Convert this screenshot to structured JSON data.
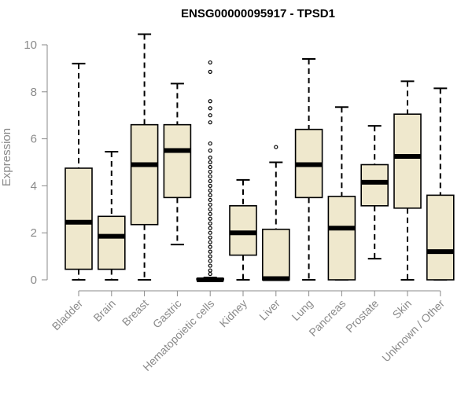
{
  "chart_data": {
    "type": "boxplot",
    "title": "ENSG00000095917 - TPSD1",
    "xlabel": "",
    "ylabel": "Expression",
    "ylim": [
      0,
      10.3
    ],
    "yticks": [
      0,
      2,
      4,
      6,
      8,
      10
    ],
    "grid": false,
    "box_color": "#efe8cd",
    "categories": [
      "Bladder",
      "Brain",
      "Breast",
      "Gastric",
      "Hematopoietic cells",
      "Kidney",
      "Liver",
      "Lung",
      "Pancreas",
      "Prostate",
      "Skin",
      "Unknown / Other"
    ],
    "boxes": [
      {
        "min": 0.0,
        "q1": 0.45,
        "median": 2.45,
        "q3": 4.75,
        "max": 9.2,
        "outliers": []
      },
      {
        "min": 0.0,
        "q1": 0.45,
        "median": 1.85,
        "q3": 2.7,
        "max": 5.45,
        "outliers": []
      },
      {
        "min": 0.0,
        "q1": 2.35,
        "median": 4.9,
        "q3": 6.6,
        "max": 10.45,
        "outliers": []
      },
      {
        "min": 1.5,
        "q1": 3.5,
        "median": 5.5,
        "q3": 6.6,
        "max": 8.35,
        "outliers": []
      },
      {
        "min": 0.0,
        "q1": 0.0,
        "median": 0.0,
        "q3": 0.05,
        "max": 0.1,
        "outliers": [
          9.25,
          8.85,
          7.6,
          7.3,
          7.0,
          6.7,
          5.8,
          5.5,
          5.2,
          5.0,
          4.8,
          4.6,
          4.4,
          4.2,
          4.0,
          3.8,
          3.6,
          3.4,
          3.2,
          3.0,
          2.8,
          2.6,
          2.4,
          2.2,
          2.0,
          1.8,
          1.6,
          1.4,
          1.2,
          1.0,
          0.8,
          0.6,
          0.4,
          0.25
        ]
      },
      {
        "min": 0.0,
        "q1": 1.05,
        "median": 2.0,
        "q3": 3.15,
        "max": 4.25,
        "outliers": []
      },
      {
        "min": 0.0,
        "q1": 0.0,
        "median": 0.05,
        "q3": 2.15,
        "max": 5.0,
        "outliers": [
          5.65
        ]
      },
      {
        "min": 0.0,
        "q1": 3.5,
        "median": 4.9,
        "q3": 6.4,
        "max": 9.4,
        "outliers": []
      },
      {
        "min": 0.0,
        "q1": 0.0,
        "median": 2.2,
        "q3": 3.55,
        "max": 7.35,
        "outliers": []
      },
      {
        "min": 0.9,
        "q1": 3.15,
        "median": 4.15,
        "q3": 4.9,
        "max": 6.55,
        "outliers": []
      },
      {
        "min": 0.0,
        "q1": 3.05,
        "median": 5.25,
        "q3": 7.05,
        "max": 8.45,
        "outliers": []
      },
      {
        "min": 0.0,
        "q1": 0.0,
        "median": 1.2,
        "q3": 3.6,
        "max": 8.15,
        "outliers": []
      }
    ]
  }
}
